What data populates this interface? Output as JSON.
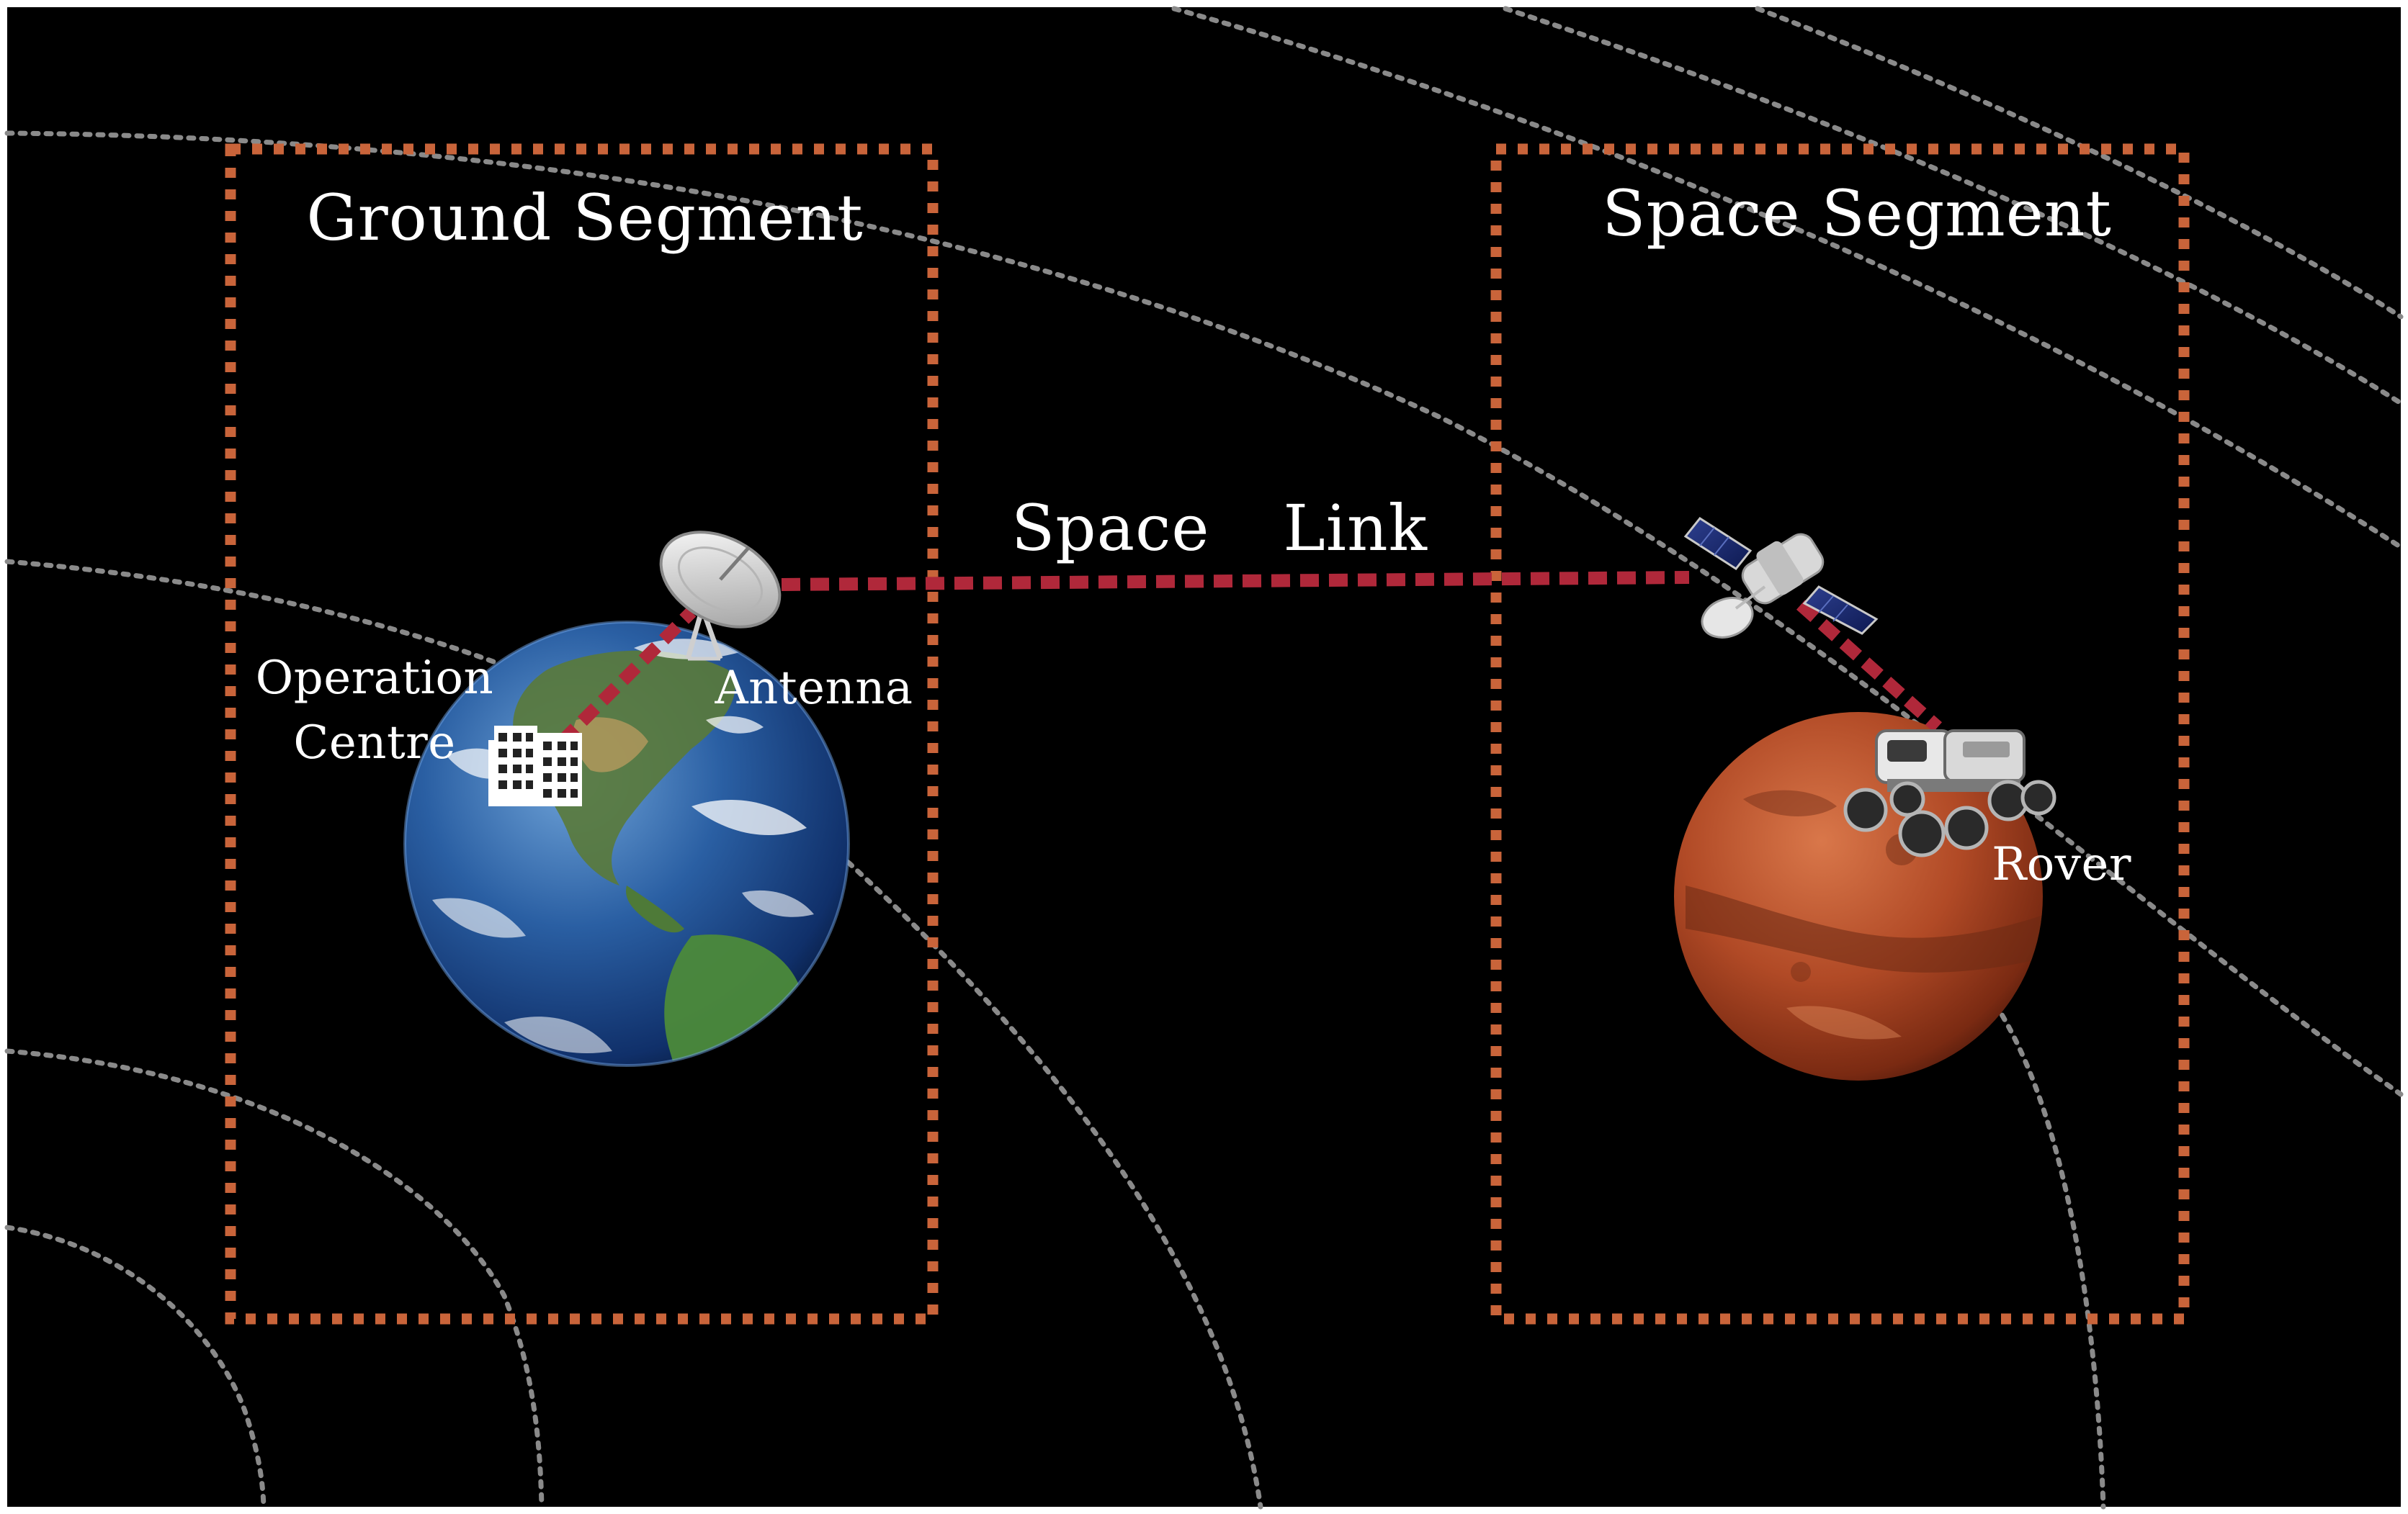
{
  "ground_segment": {
    "title": "Ground Segment",
    "operation_centre_label": [
      "Operation",
      "Centre"
    ],
    "antenna_label": "Antenna"
  },
  "space_link": {
    "label": "Space  Link"
  },
  "space_segment": {
    "title": "Space Segment",
    "rover_label": "Rover"
  },
  "colors": {
    "background": "#000000",
    "segment_border": "#c9643a",
    "link_line": "#b0283a",
    "orbit_lines": "#8a8a8a",
    "text": "#ffffff"
  },
  "icons": [
    "earth-icon",
    "mars-icon",
    "building-icon",
    "antenna-dish-icon",
    "satellite-icon",
    "rover-icon"
  ]
}
